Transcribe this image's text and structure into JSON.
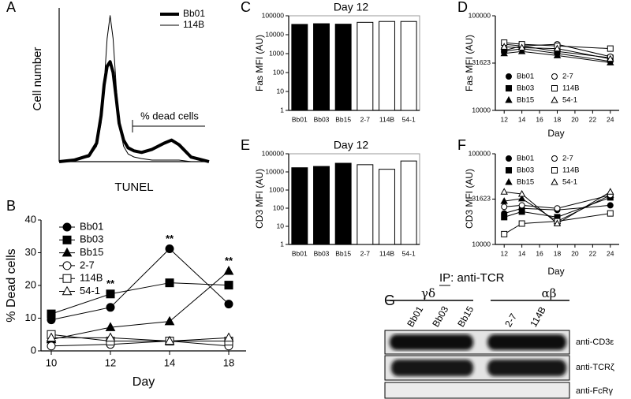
{
  "chart_data": [
    {
      "type": "line",
      "panel": "A",
      "xlabel": "TUNEL",
      "ylabel": "Cell number",
      "x": [
        0,
        10,
        20,
        25,
        28,
        30,
        32,
        34,
        36,
        38,
        40,
        43,
        46,
        50,
        55,
        62,
        70,
        75,
        80,
        88,
        100
      ],
      "xlim": [
        0,
        100
      ],
      "ylim": [
        0,
        100
      ],
      "series": [
        {
          "name": "Bb01",
          "color": "#000000",
          "line_width": 4,
          "values": [
            0,
            1,
            4,
            12,
            30,
            50,
            62,
            65,
            58,
            42,
            25,
            14,
            9,
            7,
            6,
            8,
            12,
            14,
            11,
            3,
            0
          ]
        },
        {
          "name": "114B",
          "color": "#000000",
          "line_width": 1,
          "values": [
            0,
            1,
            3,
            10,
            25,
            50,
            80,
            95,
            80,
            50,
            25,
            10,
            5,
            3,
            2,
            1,
            1,
            1,
            1,
            0,
            0
          ]
        }
      ],
      "annotations": [
        {
          "text": "% dead cells"
        }
      ]
    },
    {
      "type": "line",
      "panel": "B",
      "xlabel": "Day",
      "ylabel": "% Dead cells",
      "categories": [
        "10",
        "12",
        "14",
        "18"
      ],
      "ylim": [
        0,
        40
      ],
      "yticks": [
        0,
        10,
        20,
        30,
        40
      ],
      "series": [
        {
          "name": "Bb01",
          "marker": "circle",
          "color": "#000000",
          "values": [
            9.5,
            13.3,
            31.2,
            14.3
          ]
        },
        {
          "name": "Bb03",
          "marker": "square",
          "color": "#000000",
          "values": [
            11.3,
            17.4,
            20.8,
            20.1
          ]
        },
        {
          "name": "Bb15",
          "marker": "triangle",
          "color": "#000000",
          "values": [
            3.5,
            7.2,
            9,
            24.4
          ]
        },
        {
          "name": "2-7",
          "marker": "circle",
          "color": "#ffffff",
          "values": [
            1.5,
            2,
            3,
            1.5
          ]
        },
        {
          "name": "114B",
          "marker": "square",
          "color": "#ffffff",
          "values": [
            5,
            3,
            3,
            3
          ]
        },
        {
          "name": "54-1",
          "marker": "triangle",
          "color": "#ffffff",
          "values": [
            4,
            4,
            3,
            4
          ]
        }
      ],
      "annotations": [
        {
          "text": "**",
          "x": "12"
        },
        {
          "text": "**",
          "x": "14"
        },
        {
          "text": "**",
          "x": "18"
        }
      ]
    },
    {
      "type": "bar",
      "panel": "C",
      "title": "Day 12",
      "ylabel": "Fas MFI (AU)",
      "log_scale": true,
      "categories": [
        "Bb01",
        "Bb03",
        "Bb15",
        "2-7",
        "114B",
        "54-1"
      ],
      "values": [
        35000,
        38000,
        36000,
        45000,
        50000,
        50000
      ],
      "colors": [
        "#000000",
        "#000000",
        "#000000",
        "#ffffff",
        "#ffffff",
        "#ffffff"
      ],
      "ylim": [
        1,
        100000
      ],
      "yticks": [
        1,
        10,
        100,
        1000,
        10000,
        100000
      ]
    },
    {
      "type": "line",
      "panel": "D",
      "xlabel": "Day",
      "ylabel": "Fas MFI (AU)",
      "log_scale": true,
      "x": [
        12,
        14,
        18,
        24
      ],
      "xlim": [
        11,
        25
      ],
      "xticks": [
        12,
        14,
        16,
        18,
        20,
        22,
        24
      ],
      "ylim": [
        10000,
        100000
      ],
      "yticks": [
        10000,
        31623,
        100000
      ],
      "series": [
        {
          "name": "Bb01",
          "marker": "circle",
          "color": "#000000",
          "values": [
            42000,
            45000,
            40000,
            33000
          ]
        },
        {
          "name": "Bb03",
          "marker": "square",
          "color": "#000000",
          "values": [
            43000,
            48000,
            42000,
            36000
          ]
        },
        {
          "name": "Bb15",
          "marker": "triangle",
          "color": "#000000",
          "values": [
            40000,
            42000,
            38000,
            32000
          ]
        },
        {
          "name": "2-7",
          "marker": "circle",
          "color": "#ffffff",
          "values": [
            50000,
            48000,
            50000,
            37000
          ]
        },
        {
          "name": "114B",
          "marker": "square",
          "color": "#ffffff",
          "values": [
            52000,
            50000,
            48000,
            45000
          ]
        },
        {
          "name": "54-1",
          "marker": "triangle",
          "color": "#ffffff",
          "values": [
            47000,
            46000,
            45000,
            35000
          ]
        }
      ]
    },
    {
      "type": "bar",
      "panel": "E",
      "title": "Day 12",
      "ylabel": "CD3 MFI (AU)",
      "log_scale": true,
      "categories": [
        "Bb01",
        "Bb03",
        "Bb15",
        "2-7",
        "114B",
        "54-1"
      ],
      "values": [
        17000,
        20000,
        30000,
        25000,
        14000,
        40000
      ],
      "colors": [
        "#000000",
        "#000000",
        "#000000",
        "#ffffff",
        "#ffffff",
        "#ffffff"
      ],
      "ylim": [
        1,
        100000
      ],
      "yticks": [
        1,
        10,
        100,
        1000,
        10000,
        100000
      ]
    },
    {
      "type": "line",
      "panel": "F",
      "xlabel": "Day",
      "ylabel": "CD3 MFI (AU)",
      "log_scale": true,
      "x": [
        12,
        14,
        18,
        24
      ],
      "xlim": [
        11,
        25
      ],
      "xticks": [
        12,
        14,
        16,
        18,
        20,
        22,
        24
      ],
      "ylim": [
        10000,
        100000
      ],
      "yticks": [
        10000,
        31623,
        100000
      ],
      "series": [
        {
          "name": "Bb01",
          "marker": "circle",
          "color": "#000000",
          "values": [
            22000,
            25000,
            24000,
            27000
          ]
        },
        {
          "name": "Bb03",
          "marker": "square",
          "color": "#000000",
          "values": [
            20000,
            23000,
            20000,
            33000
          ]
        },
        {
          "name": "Bb15",
          "marker": "triangle",
          "color": "#000000",
          "values": [
            30000,
            32000,
            18000,
            35000
          ]
        },
        {
          "name": "2-7",
          "marker": "circle",
          "color": "#ffffff",
          "values": [
            26000,
            27000,
            25000,
            35000
          ]
        },
        {
          "name": "114B",
          "marker": "square",
          "color": "#ffffff",
          "values": [
            13000,
            17000,
            18000,
            22000
          ]
        },
        {
          "name": "54-1",
          "marker": "triangle",
          "color": "#ffffff",
          "values": [
            38000,
            36000,
            17000,
            38000
          ]
        }
      ]
    }
  ],
  "blot": {
    "panel": "G",
    "title": "IP: anti-TCR",
    "groups": [
      {
        "label": "γδ",
        "lanes": [
          "Bb01",
          "Bb03",
          "Bb15"
        ]
      },
      {
        "label": "αβ",
        "lanes": [
          "2-7",
          "114B"
        ]
      }
    ],
    "rows": [
      "anti-CD3ε",
      "anti-TCRζ",
      "anti-FcRγ"
    ]
  }
}
